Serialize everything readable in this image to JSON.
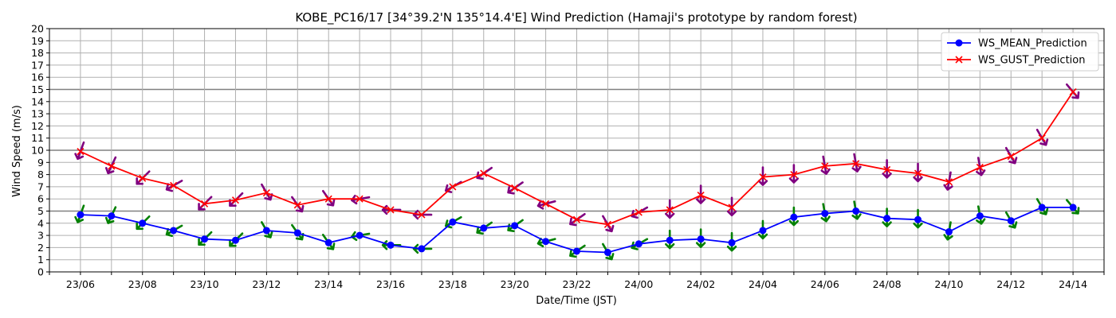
{
  "chart_data": {
    "type": "line",
    "title": "KOBE_PC16/17 [34°39.2'N 135°14.4'E] Wind Prediction (Hamaji's prototype by random forest)",
    "xlabel": "Date/Time (JST)",
    "ylabel": "Wind Speed (m/s)",
    "ylim": [
      0,
      20
    ],
    "yticks": [
      0,
      1,
      2,
      3,
      4,
      5,
      6,
      7,
      8,
      9,
      10,
      11,
      12,
      13,
      14,
      15,
      16,
      17,
      18,
      19,
      20
    ],
    "x_tick_labels": [
      "23/06",
      "23/08",
      "23/10",
      "23/12",
      "23/14",
      "23/16",
      "23/18",
      "23/20",
      "23/22",
      "24/00",
      "24/02",
      "24/04",
      "24/06",
      "24/08",
      "24/10",
      "24/12",
      "24/14"
    ],
    "x_start": "23/05",
    "x_end": "24/15",
    "x": [
      "23/06",
      "23/07",
      "23/08",
      "23/09",
      "23/10",
      "23/11",
      "23/12",
      "23/13",
      "23/14",
      "23/15",
      "23/16",
      "23/17",
      "23/18",
      "23/19",
      "23/20",
      "23/21",
      "23/22",
      "23/23",
      "24/00",
      "24/01",
      "24/02",
      "24/03",
      "24/04",
      "24/05",
      "24/06",
      "24/07",
      "24/08",
      "24/09",
      "24/10",
      "24/11",
      "24/12",
      "24/13",
      "24/14"
    ],
    "grid": true,
    "highlight_lines": [
      5,
      10,
      15
    ],
    "legend_position": "top-right",
    "series": [
      {
        "name": "WS_MEAN_Prediction",
        "color": "#0000ff",
        "marker": "circle",
        "arrow_color": "#008000",
        "values": [
          4.7,
          4.6,
          4.0,
          3.4,
          2.7,
          2.6,
          3.4,
          3.2,
          2.4,
          3.0,
          2.2,
          1.9,
          4.1,
          3.6,
          3.8,
          2.5,
          1.7,
          1.6,
          2.3,
          2.6,
          2.7,
          2.4,
          3.4,
          4.5,
          4.8,
          5.0,
          4.4,
          4.3,
          3.3,
          4.6,
          4.2,
          5.3,
          5.3
        ]
      },
      {
        "name": "WS_GUST_Prediction",
        "color": "#ff0000",
        "marker": "x",
        "arrow_color": "#800080",
        "values": [
          9.9,
          8.7,
          7.7,
          7.1,
          5.6,
          5.9,
          6.5,
          5.5,
          6.0,
          6.0,
          5.1,
          4.7,
          7.0,
          8.1,
          6.9,
          5.6,
          4.3,
          3.9,
          4.9,
          5.1,
          6.3,
          5.3,
          7.8,
          8.0,
          8.7,
          8.9,
          8.4,
          8.1,
          7.4,
          8.6,
          9.5,
          11.0,
          14.8
        ]
      }
    ],
    "wind_arrow_angles_deg": [
      -20,
      -25,
      -45,
      -60,
      -45,
      -45,
      30,
      35,
      35,
      -80,
      -90,
      -90,
      -60,
      -55,
      -55,
      -75,
      -55,
      30,
      -60,
      0,
      0,
      0,
      0,
      0,
      10,
      10,
      0,
      0,
      -10,
      10,
      30,
      30,
      40
    ]
  },
  "legend": {
    "mean_label": "WS_MEAN_Prediction",
    "gust_label": "WS_GUST_Prediction"
  }
}
